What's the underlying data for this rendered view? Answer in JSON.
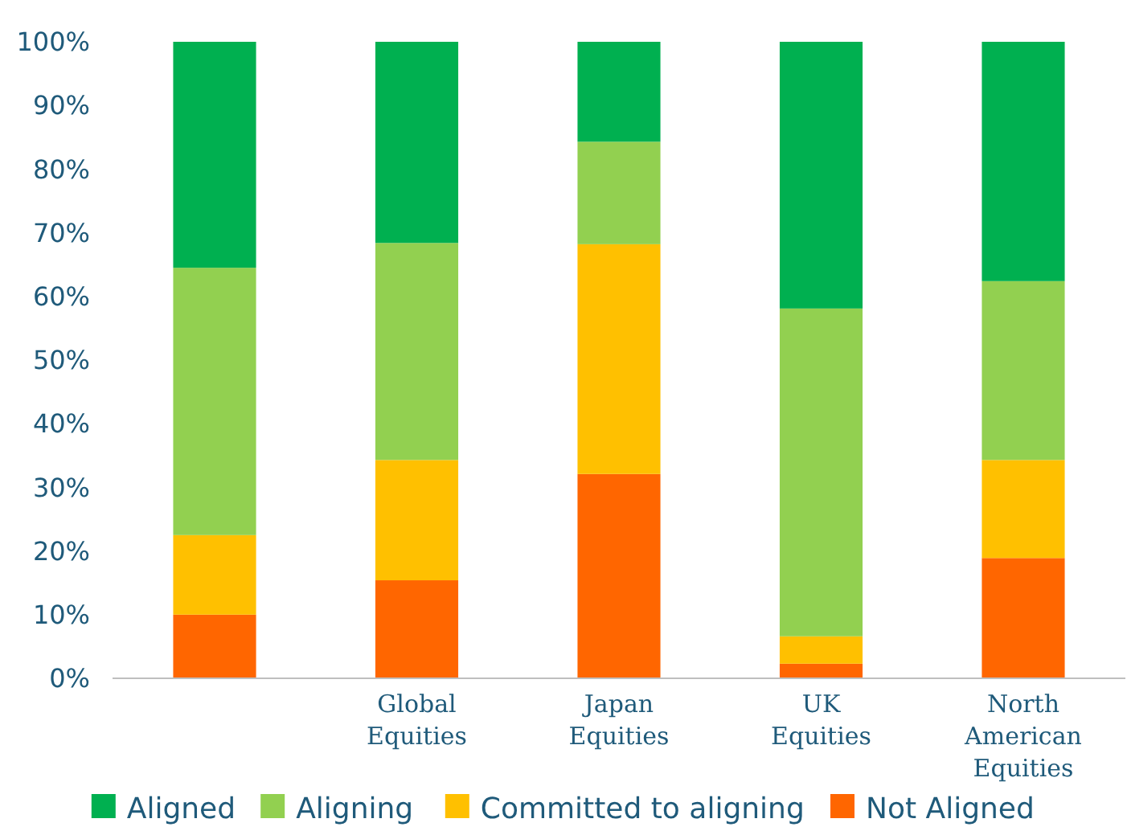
{
  "chart_data": {
    "type": "bar",
    "stacked": true,
    "categories": [
      null,
      "Global Equities",
      "Japan Equities",
      "UK Equities",
      "North American Equities"
    ],
    "series": [
      {
        "name": "Not Aligned",
        "color": "#ff6600",
        "values": [
          10,
          15.4,
          32.1,
          2.3,
          18.9
        ]
      },
      {
        "name": "Committed to aligning",
        "color": "#ffc000",
        "values": [
          12.5,
          18.9,
          36.1,
          4.3,
          15.4
        ]
      },
      {
        "name": "Aligning",
        "color": "#92d050",
        "values": [
          42,
          34.1,
          16.1,
          51.5,
          28.1
        ]
      },
      {
        "name": "Aligned",
        "color": "#00b050",
        "values": [
          35.5,
          31.6,
          15.7,
          41.9,
          37.6
        ]
      }
    ],
    "ylim": [
      0,
      100
    ],
    "yticks": [
      {
        "value": 0,
        "label": "0%"
      },
      {
        "value": 10,
        "label": "10%"
      },
      {
        "value": 20,
        "label": "20%"
      },
      {
        "value": 30,
        "label": "30%"
      },
      {
        "value": 40,
        "label": "40%"
      },
      {
        "value": 50,
        "label": "50%"
      },
      {
        "value": 60,
        "label": "60%"
      },
      {
        "value": 70,
        "label": "70%"
      },
      {
        "value": 80,
        "label": "80%"
      },
      {
        "value": 90,
        "label": "90%"
      },
      {
        "value": 100,
        "label": "100%"
      }
    ],
    "grid": false,
    "legend": "bottom"
  }
}
